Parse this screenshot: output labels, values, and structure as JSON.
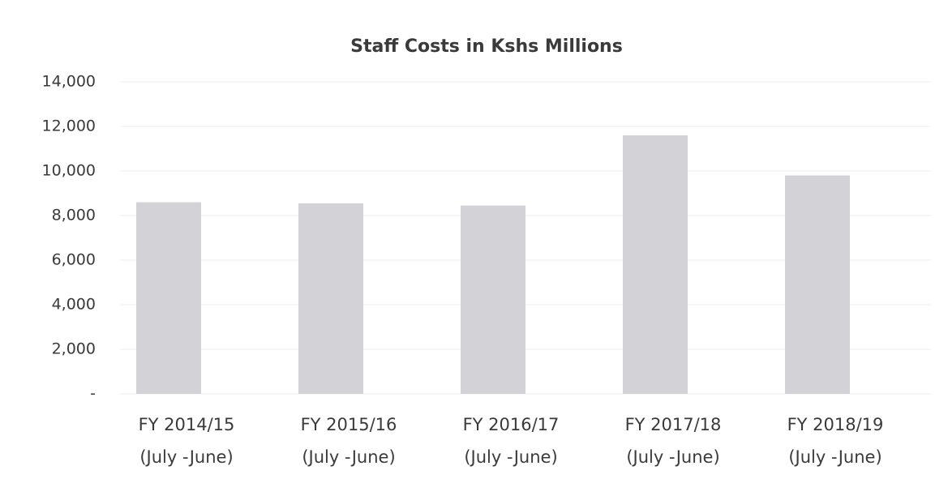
{
  "chart_data": {
    "type": "bar",
    "title": "Staff Costs in Kshs Millions",
    "categories": [
      [
        "FY 2014/15",
        "(July -June)"
      ],
      [
        "FY 2015/16",
        "(July -June)"
      ],
      [
        "FY 2016/17",
        "(July -June)"
      ],
      [
        "FY 2017/18",
        "(July -June)"
      ],
      [
        "FY 2018/19",
        "(July -June)"
      ]
    ],
    "values": [
      8600,
      8550,
      8450,
      11600,
      9800
    ],
    "color": "#d3d3d7",
    "ylim": [
      0,
      14000
    ],
    "yticks": [
      {
        "value": 0,
        "label": "-"
      },
      {
        "value": 2000,
        "label": "2,000"
      },
      {
        "value": 4000,
        "label": "4,000"
      },
      {
        "value": 6000,
        "label": "6,000"
      },
      {
        "value": 8000,
        "label": "8,000"
      },
      {
        "value": 10000,
        "label": "10,000"
      },
      {
        "value": 12000,
        "label": "12,000"
      },
      {
        "value": 14000,
        "label": "14,000"
      }
    ],
    "grid": true
  }
}
